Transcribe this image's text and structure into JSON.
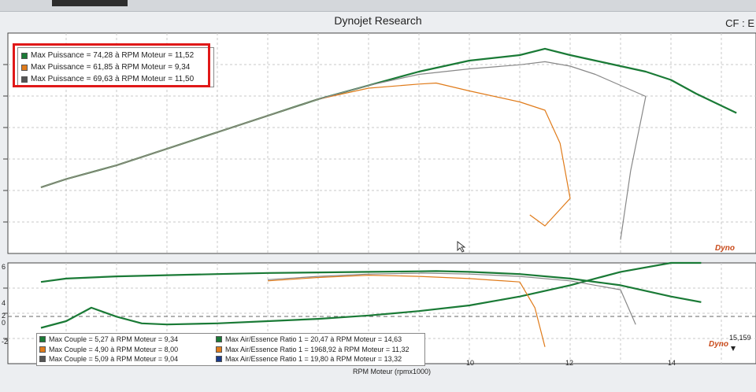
{
  "app": {
    "title": "Dynojet Research",
    "cf_label": "CF : E"
  },
  "chart_data": [
    {
      "type": "line",
      "panel": "power",
      "xlim": [
        1.0,
        15.3
      ],
      "ylim": [
        0,
        80
      ],
      "legend": {
        "placement": "top-left",
        "entries": [
          {
            "label": "Max Puissance = 74,28 à RPM Moteur = 11,52",
            "color": "#1a7a36"
          },
          {
            "label": "Max Puissance = 61,85 à RPM Moteur = 9,34",
            "color": "#e07b1a"
          },
          {
            "label": "Max Puissance = 69,63 à RPM Moteur = 11,50",
            "color": "#555555"
          }
        ]
      },
      "series": [
        {
          "color": "#1a7a36",
          "x": [
            1.5,
            2,
            3,
            4,
            5,
            6,
            7,
            8,
            9,
            9.5,
            10,
            10.5,
            11,
            11.5,
            12,
            12.5,
            13,
            13.5,
            14,
            14.5,
            15.3
          ],
          "y": [
            24,
            27,
            32,
            38,
            44,
            50,
            56,
            61,
            66,
            68,
            70,
            71,
            72,
            74.3,
            72,
            70,
            68,
            66,
            63,
            58,
            51
          ]
        },
        {
          "color": "#e07b1a",
          "x": [
            1.5,
            2,
            3,
            4,
            5,
            6,
            7,
            8,
            9,
            9.34,
            10,
            11,
            11.5,
            11.8,
            12,
            11.5,
            11.2
          ],
          "y": [
            24,
            27,
            32,
            38,
            44,
            50,
            56,
            60,
            61.5,
            61.85,
            59,
            55,
            52,
            40,
            20,
            10,
            14
          ]
        },
        {
          "color": "#888888",
          "x": [
            1.5,
            2,
            3,
            4,
            5,
            6,
            7,
            8,
            9,
            10,
            11,
            11.5,
            12,
            12.5,
            13,
            13.5,
            13.2,
            13.0
          ],
          "y": [
            24,
            27,
            32,
            38,
            44,
            50,
            56,
            61,
            65,
            67,
            68.5,
            69.6,
            68,
            65,
            61,
            57,
            30,
            5
          ]
        }
      ]
    },
    {
      "type": "line",
      "panel": "torque-afr",
      "xlim": [
        1.0,
        15.3
      ],
      "ylim": [
        -3,
        6
      ],
      "legend": {
        "placement": "bottom-left",
        "entries": [
          {
            "label": "Max Couple = 5,27 à RPM Moteur = 9,34",
            "color": "#1a7a36"
          },
          {
            "label": "Max Couple = 4,90 à RPM Moteur = 8,00",
            "color": "#e07b1a"
          },
          {
            "label": "Max Couple = 5,09 à RPM Moteur = 9,04",
            "color": "#555555"
          },
          {
            "label": "Max Air/Essence Ratio 1 = 20,47 à RPM Moteur = 14,63",
            "color": "#1a7a36"
          },
          {
            "label": "Max Air/Essence Ratio 1 = 1968,92 à RPM Moteur = 11,32",
            "color": "#e07b1a"
          },
          {
            "label": "Max Air/Essence Ratio 1 = 19,80 à RPM Moteur = 13,32",
            "color": "#1a3a8a"
          }
        ]
      },
      "xlabel": "RPM Moteur (rpmx1000)",
      "xticks": [
        "10",
        "12",
        "14"
      ],
      "yticks": [
        "6",
        "4",
        "2",
        "0",
        "-2"
      ],
      "cursor_value": "15,159",
      "series": [
        {
          "color": "#1a7a36",
          "x": [
            1.5,
            2,
            3,
            4,
            5,
            6,
            7,
            8,
            9,
            9.34,
            10,
            11,
            12,
            13,
            14,
            14.6
          ],
          "y": [
            4.3,
            4.6,
            4.8,
            4.9,
            5.0,
            5.1,
            5.15,
            5.2,
            5.25,
            5.27,
            5.2,
            5.0,
            4.6,
            4.0,
            3.0,
            2.5
          ]
        },
        {
          "color": "#1a7a36",
          "x": [
            1.5,
            2,
            2.5,
            3,
            3.5,
            4,
            5,
            6,
            7,
            8,
            9,
            10,
            11,
            12,
            13,
            14,
            14.6
          ],
          "y": [
            0.2,
            0.8,
            2.0,
            1.2,
            0.6,
            0.5,
            0.6,
            0.8,
            1.0,
            1.3,
            1.7,
            2.2,
            3.0,
            4.0,
            5.2,
            6.0,
            6.0
          ]
        },
        {
          "color": "#e07b1a",
          "x": [
            6,
            7,
            8,
            9,
            10,
            11,
            11.3,
            11.5
          ],
          "y": [
            4.4,
            4.7,
            4.9,
            4.8,
            4.6,
            4.3,
            2.0,
            -1.5
          ]
        },
        {
          "color": "#888888",
          "x": [
            6,
            7,
            8,
            9,
            9.04,
            10,
            11,
            12,
            13,
            13.3
          ],
          "y": [
            4.5,
            4.8,
            5.0,
            5.08,
            5.09,
            5.0,
            4.8,
            4.4,
            3.6,
            0.5
          ]
        }
      ]
    }
  ]
}
